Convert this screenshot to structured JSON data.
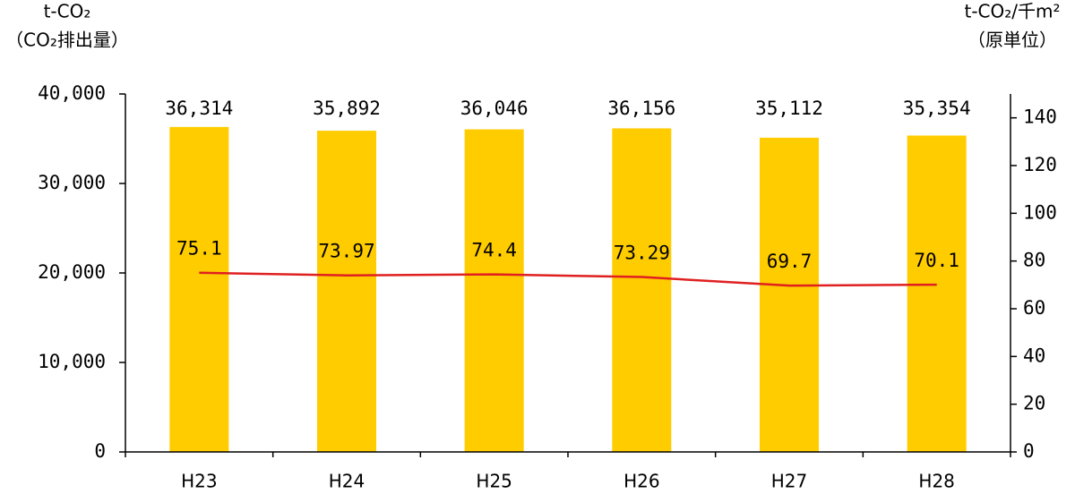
{
  "chart_data": {
    "type": "combo",
    "y_label": [
      "t-CO₂",
      "（CO₂排出量）"
    ],
    "y2_label": [
      "t-CO₂/千m²",
      "（原単位）"
    ],
    "categories": [
      "H23",
      "H24",
      "H25",
      "H26",
      "H27",
      "H28"
    ],
    "series": [
      {
        "type": "bar",
        "color": "#ffcc00",
        "values": [
          36314,
          35892,
          36046,
          36156,
          35112,
          35354
        ],
        "value_labels": [
          "36,314",
          "35,892",
          "36,046",
          "36,156",
          "35,112",
          "35,354"
        ]
      },
      {
        "type": "line",
        "axis": "y2",
        "color": "#e02020",
        "values": [
          75.1,
          73.97,
          74.4,
          73.29,
          69.7,
          70.1
        ]
      }
    ],
    "ylim": [
      0,
      40000
    ],
    "yticks": [
      0,
      {
        "value": 10000,
        "label": "10,000"
      },
      {
        "value": 20000,
        "label": "20,000"
      },
      {
        "value": 30000,
        "label": "30,000"
      },
      {
        "value": 40000,
        "label": "40,000"
      }
    ],
    "y2lim": [
      0,
      150
    ],
    "y2ticks": [
      0,
      20,
      40,
      60,
      80,
      100,
      120,
      140
    ]
  }
}
